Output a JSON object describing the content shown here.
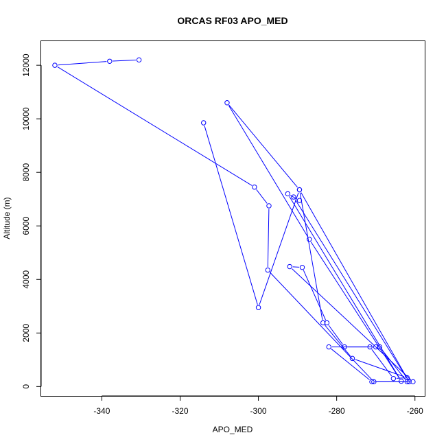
{
  "chart_data": {
    "type": "line",
    "title": "ORCAS RF03 APO_MED",
    "xlabel": "APO_MED",
    "ylabel": "Altitude (m)",
    "xlim": [
      -355.5,
      -257.5
    ],
    "ylim": [
      -350,
      12900
    ],
    "xticks": [
      -340,
      -320,
      -300,
      -280,
      -260
    ],
    "yticks": [
      0,
      2000,
      4000,
      6000,
      8000,
      10000,
      12000
    ],
    "grid": false,
    "legend": "none",
    "series": [
      {
        "color": "#0000ff",
        "marker": "open-circle",
        "x": [
          -330.5,
          -338.0,
          -352.0,
          -301.0,
          -297.3,
          -297.6,
          -270.5,
          -262.0,
          -269.0,
          -270.0,
          -282.0,
          -271.0,
          -260.5,
          -292.0,
          -288.8,
          -282.5,
          -278.0,
          -271.5,
          -265.5,
          -262.0,
          -276.0,
          -283.5,
          -289.5,
          -261.5,
          -291.0,
          -289.5,
          -292.5,
          -263.5,
          -287.0,
          -308.0,
          -289.5,
          -300.0,
          -314.0
        ],
        "y": [
          12200,
          12150,
          12000,
          7450,
          6750,
          4350,
          180,
          180,
          1480,
          1480,
          1480,
          180,
          180,
          4480,
          4450,
          2380,
          1480,
          1480,
          300,
          330,
          1050,
          2380,
          7350,
          180,
          7080,
          6950,
          7200,
          200,
          5500,
          10600,
          7350,
          2950,
          9850
        ]
      }
    ]
  }
}
